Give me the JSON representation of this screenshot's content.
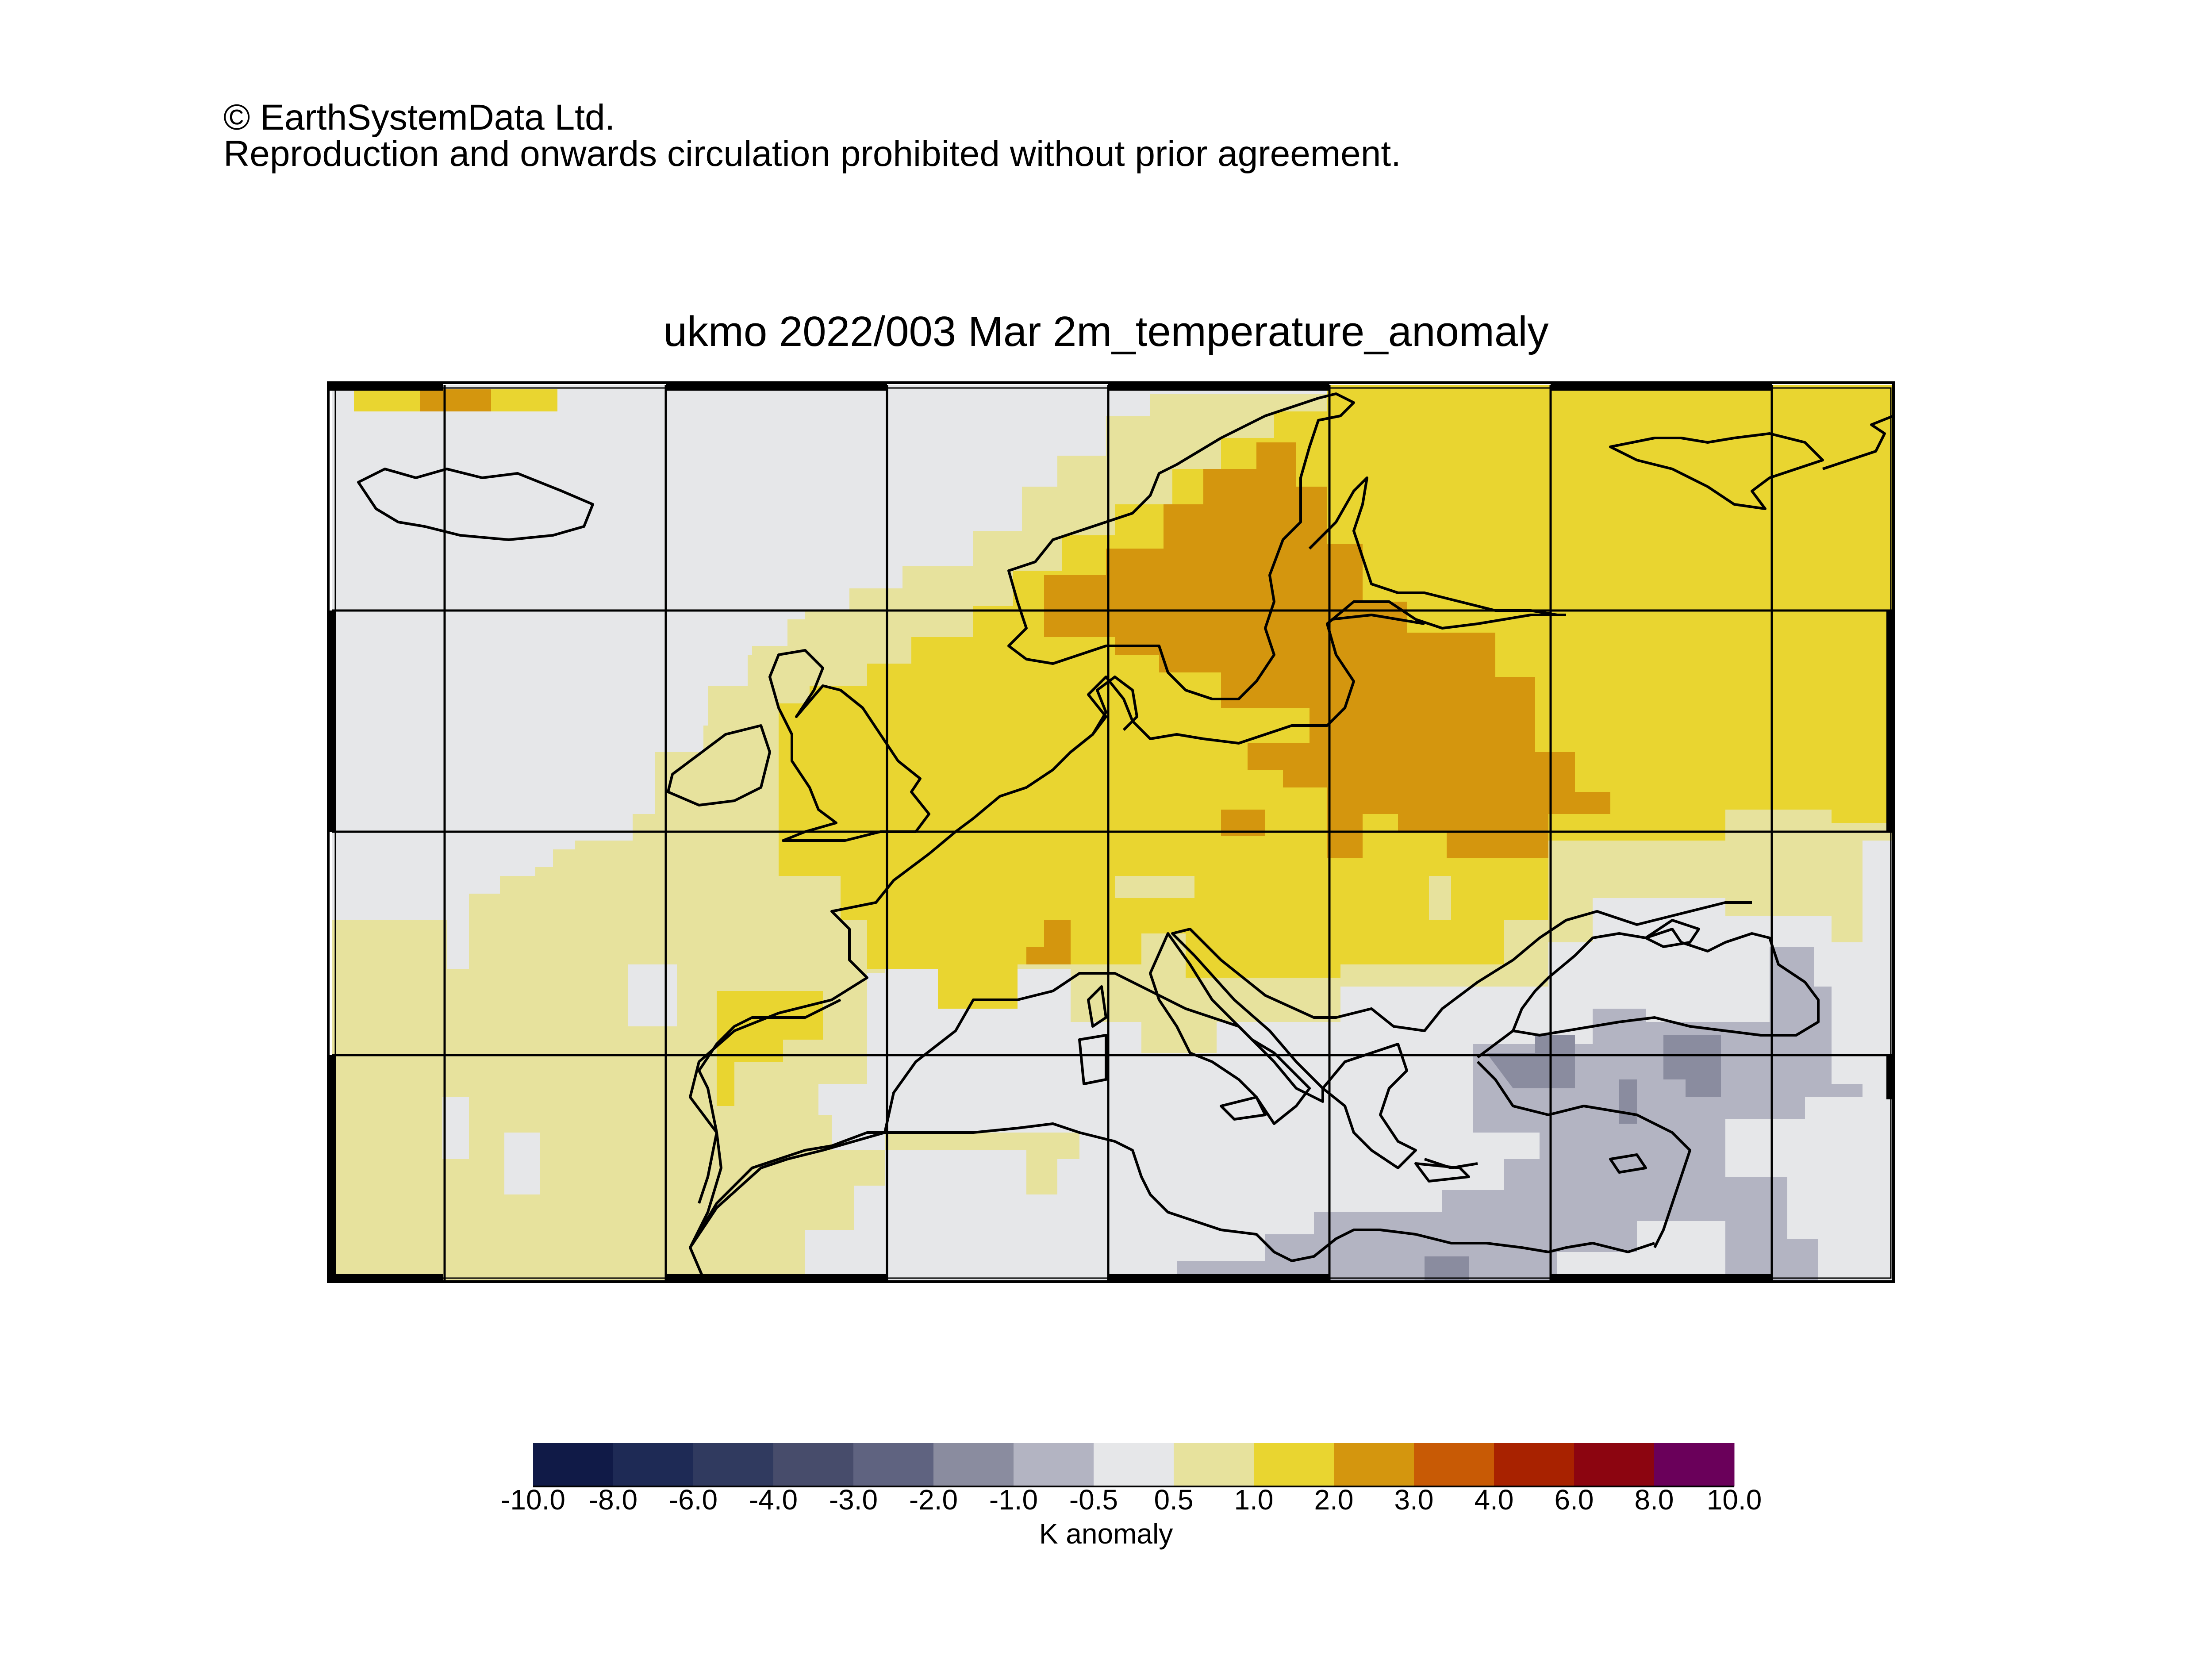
{
  "copyright": {
    "line1": "© EarthSystemData Ltd.",
    "line2": "Reproduction and onwards circulation prohibited without prior agreement."
  },
  "map": {
    "title": "ukmo 2022/003 Mar 2m_temperature_anomaly",
    "region": "Europe, North Africa and Middle East",
    "variable": "2m temperature anomaly",
    "graticule": "lat/lon grid lines",
    "anomaly_regions": [
      {
        "area": "Scandinavia and northwest Russia",
        "category": "2.0 to 3.0"
      },
      {
        "area": "Central and Eastern Europe, Finland, Northern Russia",
        "category": "1.0 to 2.0"
      },
      {
        "area": "British Isles, North Sea and Biscay coast",
        "category": "1.0 to 2.0"
      },
      {
        "area": "Iberia, eastern Atlantic, Norwegian Sea",
        "category": "0.5 to 1.0"
      },
      {
        "area": "North Atlantic, Iceland, Mediterranean, Black Sea",
        "category": "-0.5 to 0.5"
      },
      {
        "area": "Turkey, Levant and Egypt",
        "category": "-1.0 to -0.5"
      },
      {
        "area": "Anatolia and Caucasus",
        "category": "-2.0 to -1.0"
      }
    ]
  },
  "colorbar": {
    "unit_label": "K anomaly",
    "tick_labels": [
      "-10.0",
      "-8.0",
      "-6.0",
      "-4.0",
      "-3.0",
      "-2.0",
      "-1.0",
      "-0.5",
      "0.5",
      "1.0",
      "2.0",
      "3.0",
      "4.0",
      "6.0",
      "8.0",
      "10.0"
    ],
    "colors": [
      "#101a47",
      "#1e2a55",
      "#303a5f",
      "#474c6b",
      "#5f6380",
      "#8a8c9f",
      "#b3b4c2",
      "#e6e7e9",
      "#e7e29d",
      "#e9d530",
      "#d4960e",
      "#c85a05",
      "#a82200",
      "#8c0510",
      "#6a005a"
    ]
  }
}
